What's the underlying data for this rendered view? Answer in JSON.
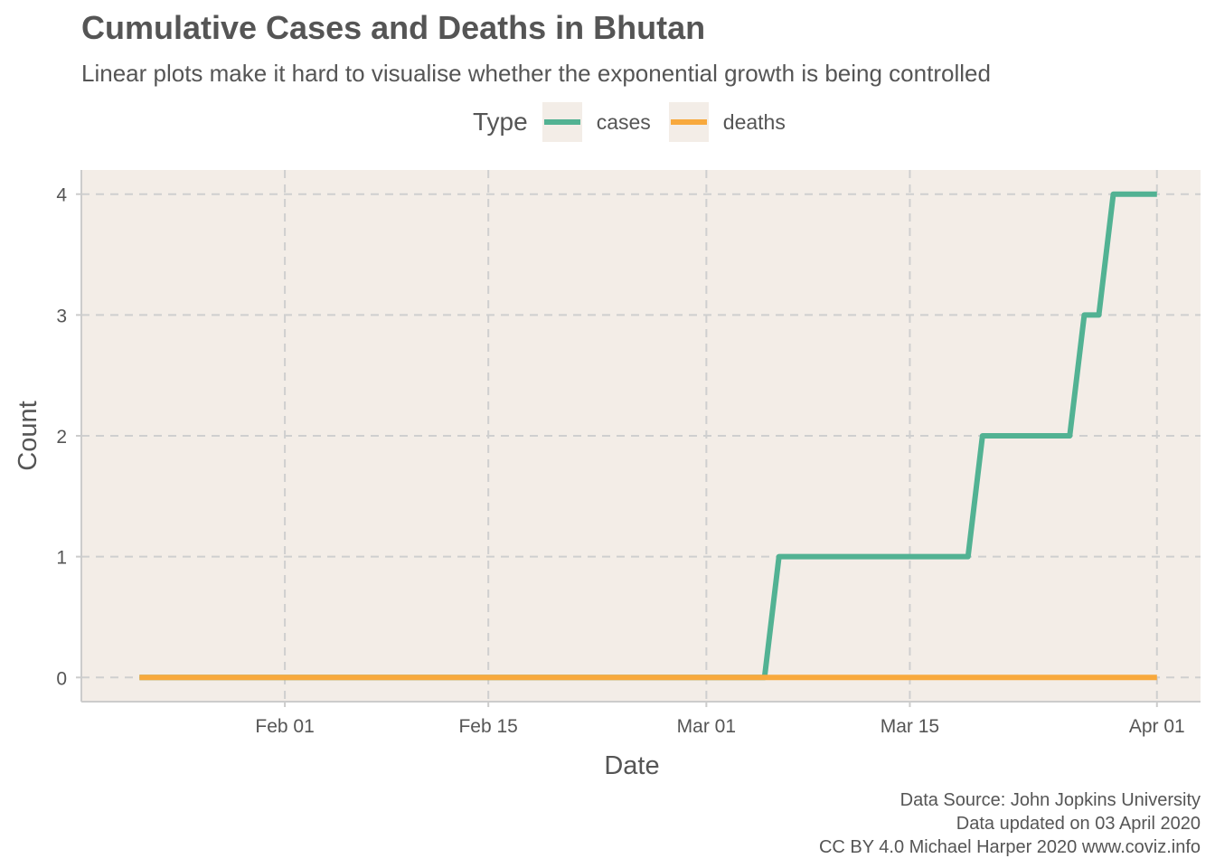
{
  "chart_data": {
    "type": "line",
    "title": "Cumulative Cases and Deaths in Bhutan",
    "subtitle": "Linear plots make it hard to visualise whether the exponential growth is being controlled",
    "xlabel": "Date",
    "ylabel": "Count",
    "legend": {
      "title": "Type",
      "position": "top"
    },
    "x_ticks": [
      {
        "date": "2020-02-01",
        "label": "Feb 01"
      },
      {
        "date": "2020-02-15",
        "label": "Feb 15"
      },
      {
        "date": "2020-03-01",
        "label": "Mar 01"
      },
      {
        "date": "2020-03-15",
        "label": "Mar 15"
      },
      {
        "date": "2020-04-01",
        "label": "Apr 01"
      }
    ],
    "y_ticks": [
      0,
      1,
      2,
      3,
      4
    ],
    "xlim": [
      "2020-01-18",
      "2020-04-04"
    ],
    "ylim": [
      -0.2,
      4.2
    ],
    "grid": true,
    "series": [
      {
        "name": "cases",
        "color": "#52B293",
        "points": [
          [
            "2020-01-22",
            0
          ],
          [
            "2020-03-05",
            0
          ],
          [
            "2020-03-06",
            1
          ],
          [
            "2020-03-19",
            1
          ],
          [
            "2020-03-20",
            2
          ],
          [
            "2020-03-26",
            2
          ],
          [
            "2020-03-27",
            3
          ],
          [
            "2020-03-28",
            3
          ],
          [
            "2020-03-29",
            4
          ],
          [
            "2020-04-01",
            4
          ]
        ]
      },
      {
        "name": "deaths",
        "color": "#F8A93D",
        "points": [
          [
            "2020-01-22",
            0
          ],
          [
            "2020-04-01",
            0
          ]
        ]
      }
    ]
  },
  "caption": {
    "line1": "Data Source: John Jopkins University",
    "line2": "Data updated on 03 April 2020",
    "line3": "CC BY 4.0 Michael Harper 2020 www.coviz.info"
  }
}
